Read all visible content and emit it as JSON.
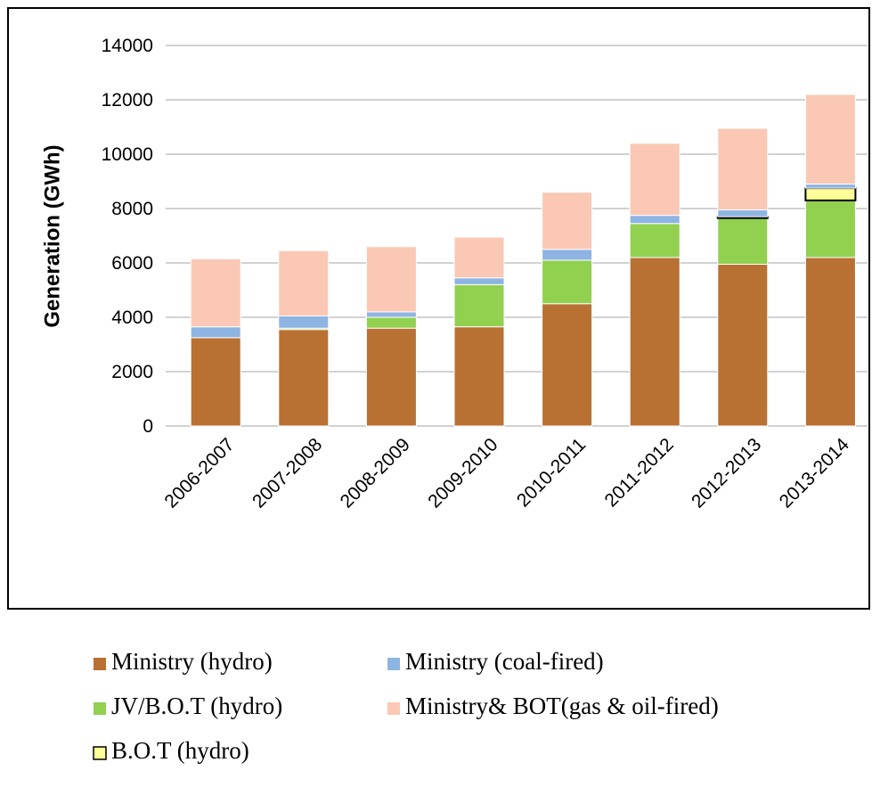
{
  "chart_data": {
    "type": "stacked_bar",
    "y_label": "Generation (GWh)",
    "categories": [
      "2006-2007",
      "2007-2008",
      "2008-2009",
      "2009-2010",
      "2010-2011",
      "2011-2012",
      "2012-2013",
      "2013-2014"
    ],
    "series": [
      {
        "name": "Ministry (hydro)",
        "color": "#b87033",
        "values": [
          3250,
          3550,
          3600,
          3650,
          4500,
          6200,
          5950,
          6200
        ]
      },
      {
        "name": "JV/B.O.T (hydro)",
        "color": "#92d050",
        "values": [
          0,
          50,
          400,
          1550,
          1600,
          1250,
          1700,
          2100
        ]
      },
      {
        "name": "B.O.T (hydro)",
        "color": "#ffff99",
        "values": [
          0,
          0,
          0,
          0,
          0,
          0,
          50,
          450
        ]
      },
      {
        "name": "Ministry (coal-fired)",
        "color": "#8eb4e3",
        "values": [
          400,
          450,
          200,
          250,
          400,
          300,
          250,
          150
        ]
      },
      {
        "name": "Ministry& BOT(gas & oil-fired)",
        "color": "#fac8b4",
        "values": [
          2500,
          2400,
          2400,
          1500,
          2100,
          2650,
          3000,
          3300
        ]
      }
    ],
    "ylim": [
      0,
      14000
    ],
    "yticks": [
      0,
      2000,
      4000,
      6000,
      8000,
      10000,
      12000,
      14000
    ],
    "grid": true
  }
}
